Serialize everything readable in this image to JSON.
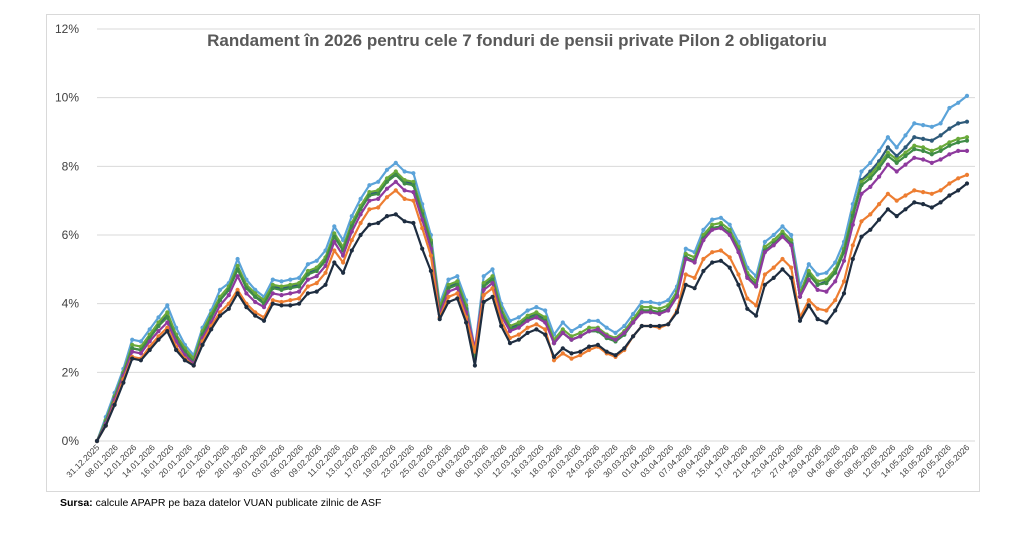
{
  "source": {
    "label": "Sursa:",
    "text": "calcule APAPR pe baza datelor VUAN publicate zilnic de ASF"
  },
  "chart_data": {
    "type": "line",
    "title": "Randament în 2026 pentru cele 7 fonduri de pensii private Pilon 2 obligatoriu",
    "xlabel": "",
    "ylabel": "",
    "ylim": [
      0,
      12
    ],
    "yticks": [
      "0%",
      "2%",
      "4%",
      "6%",
      "8%",
      "10%",
      "12%"
    ],
    "grid": true,
    "legend": "none",
    "x_tick_labels": [
      "31.12.2025",
      "08.01.2026",
      "12.01.2026",
      "14.01.2026",
      "16.01.2026",
      "20.01.2026",
      "22.01.2026",
      "26.01.2026",
      "28.01.2026",
      "30.01.2026",
      "03.02.2026",
      "05.02.2026",
      "09.02.2026",
      "11.02.2026",
      "13.02.2026",
      "17.02.2026",
      "19.02.2026",
      "23.02.2026",
      "25.02.2026",
      "02.03.2026",
      "04.03.2026",
      "06.03.2026",
      "10.03.2026",
      "12.03.2026",
      "16.03.2026",
      "18.03.2026",
      "20.03.2026",
      "24.03.2026",
      "26.03.2026",
      "30.03.2026",
      "01.04.2026",
      "03.04.2026",
      "07.04.2026",
      "09.04.2026",
      "15.04.2026",
      "17.04.2026",
      "21.04.2026",
      "23.04.2026",
      "27.04.2026",
      "29.04.2026",
      "04.05.2026",
      "06.05.2026",
      "08.05.2026",
      "12.05.2026",
      "14.05.2026",
      "18.05.2026",
      "20.05.2026",
      "22.05.2026"
    ],
    "series": [
      {
        "color": "#5ba3d9",
        "values": [
          0.0,
          0.7,
          1.4,
          2.1,
          2.95,
          2.9,
          3.25,
          3.6,
          3.95,
          3.3,
          2.8,
          2.5,
          3.3,
          3.8,
          4.4,
          4.6,
          5.3,
          4.7,
          4.4,
          4.2,
          4.7,
          4.65,
          4.7,
          4.75,
          5.15,
          5.25,
          5.55,
          6.25,
          5.85,
          6.55,
          7.05,
          7.45,
          7.55,
          7.9,
          8.1,
          7.85,
          7.8,
          6.9,
          6.0,
          4.0,
          4.7,
          4.8,
          4.1,
          2.65,
          4.8,
          5.0,
          4.0,
          3.5,
          3.6,
          3.8,
          3.9,
          3.8,
          3.1,
          3.45,
          3.2,
          3.35,
          3.5,
          3.5,
          3.3,
          3.15,
          3.35,
          3.7,
          4.05,
          4.05,
          4.0,
          4.1,
          4.5,
          5.6,
          5.5,
          6.15,
          6.45,
          6.5,
          6.3,
          5.8,
          5.05,
          4.8,
          5.8,
          6.0,
          6.25,
          6.0,
          4.5,
          5.15,
          4.85,
          4.9,
          5.2,
          5.8,
          6.9,
          7.85,
          8.1,
          8.45,
          8.85,
          8.55,
          8.9,
          9.25,
          9.2,
          9.15,
          9.25,
          9.7,
          9.85,
          10.05
        ]
      },
      {
        "color": "#2e5a7a",
        "values": [
          0.0,
          0.6,
          1.3,
          2.0,
          2.7,
          2.65,
          3.0,
          3.35,
          3.7,
          3.0,
          2.6,
          2.3,
          3.1,
          3.6,
          4.1,
          4.4,
          5.0,
          4.5,
          4.2,
          4.05,
          4.5,
          4.45,
          4.5,
          4.55,
          4.9,
          5.0,
          5.3,
          6.0,
          5.6,
          6.3,
          6.8,
          7.2,
          7.25,
          7.6,
          7.8,
          7.55,
          7.5,
          6.65,
          5.8,
          3.8,
          4.5,
          4.6,
          3.85,
          2.4,
          4.55,
          4.75,
          3.75,
          3.3,
          3.4,
          3.6,
          3.7,
          3.55,
          2.85,
          3.15,
          2.95,
          3.05,
          3.2,
          3.2,
          3.0,
          2.9,
          3.1,
          3.45,
          3.8,
          3.8,
          3.75,
          3.85,
          4.25,
          5.35,
          5.25,
          5.9,
          6.2,
          6.25,
          6.05,
          5.55,
          4.8,
          4.55,
          5.55,
          5.75,
          6.0,
          5.75,
          4.2,
          4.9,
          4.55,
          4.65,
          4.95,
          5.55,
          6.6,
          7.6,
          7.85,
          8.15,
          8.55,
          8.3,
          8.55,
          8.85,
          8.8,
          8.75,
          8.9,
          9.1,
          9.25,
          9.3
        ]
      },
      {
        "color": "#6aaa3a",
        "values": [
          0.0,
          0.6,
          1.3,
          2.0,
          2.8,
          2.75,
          3.1,
          3.45,
          3.75,
          3.1,
          2.7,
          2.4,
          3.2,
          3.7,
          4.2,
          4.5,
          5.1,
          4.55,
          4.3,
          4.1,
          4.55,
          4.5,
          4.55,
          4.6,
          4.95,
          5.05,
          5.35,
          6.05,
          5.65,
          6.35,
          6.85,
          7.25,
          7.3,
          7.65,
          7.85,
          7.6,
          7.55,
          6.7,
          5.85,
          3.9,
          4.55,
          4.65,
          3.95,
          2.5,
          4.6,
          4.8,
          3.85,
          3.35,
          3.45,
          3.65,
          3.75,
          3.6,
          2.95,
          3.25,
          3.05,
          3.15,
          3.3,
          3.3,
          3.1,
          3.0,
          3.2,
          3.55,
          3.9,
          3.9,
          3.85,
          3.95,
          4.35,
          5.45,
          5.35,
          6.0,
          6.3,
          6.35,
          6.15,
          5.65,
          4.9,
          4.65,
          5.65,
          5.85,
          6.1,
          5.85,
          4.3,
          4.95,
          4.65,
          4.7,
          5.0,
          5.6,
          6.65,
          7.55,
          7.75,
          8.05,
          8.4,
          8.2,
          8.4,
          8.6,
          8.55,
          8.45,
          8.55,
          8.7,
          8.8,
          8.85
        ]
      },
      {
        "color": "#3f8c47",
        "values": [
          0.0,
          0.55,
          1.25,
          1.95,
          2.7,
          2.65,
          3.0,
          3.35,
          3.6,
          3.0,
          2.6,
          2.3,
          3.1,
          3.6,
          4.1,
          4.4,
          5.0,
          4.45,
          4.2,
          4.0,
          4.45,
          4.4,
          4.45,
          4.5,
          4.85,
          4.95,
          5.25,
          5.95,
          5.55,
          6.25,
          6.75,
          7.15,
          7.2,
          7.55,
          7.75,
          7.5,
          7.45,
          6.6,
          5.75,
          3.8,
          4.45,
          4.55,
          3.85,
          2.45,
          4.5,
          4.7,
          3.75,
          3.25,
          3.35,
          3.55,
          3.65,
          3.5,
          2.85,
          3.15,
          2.95,
          3.05,
          3.2,
          3.2,
          3.0,
          2.9,
          3.1,
          3.45,
          3.8,
          3.8,
          3.75,
          3.85,
          4.25,
          5.35,
          5.25,
          5.9,
          6.2,
          6.25,
          6.05,
          5.55,
          4.8,
          4.55,
          5.55,
          5.75,
          6.0,
          5.75,
          4.2,
          4.85,
          4.55,
          4.6,
          4.9,
          5.5,
          6.55,
          7.45,
          7.65,
          7.95,
          8.3,
          8.1,
          8.3,
          8.5,
          8.45,
          8.35,
          8.45,
          8.6,
          8.7,
          8.75
        ]
      },
      {
        "color": "#8e3a9e",
        "values": [
          0.0,
          0.5,
          1.2,
          1.9,
          2.6,
          2.55,
          2.9,
          3.2,
          3.45,
          2.9,
          2.5,
          2.25,
          3.0,
          3.45,
          3.95,
          4.25,
          4.8,
          4.3,
          4.05,
          3.9,
          4.3,
          4.25,
          4.3,
          4.35,
          4.7,
          4.8,
          5.1,
          5.8,
          5.4,
          6.1,
          6.6,
          7.0,
          7.05,
          7.35,
          7.55,
          7.3,
          7.25,
          6.45,
          5.6,
          3.7,
          4.35,
          4.45,
          3.75,
          2.7,
          4.4,
          4.6,
          3.65,
          3.2,
          3.3,
          3.5,
          3.6,
          3.45,
          2.85,
          3.15,
          2.95,
          3.05,
          3.2,
          3.25,
          3.05,
          2.95,
          3.15,
          3.45,
          3.75,
          3.75,
          3.7,
          3.8,
          4.2,
          5.3,
          5.2,
          5.85,
          6.15,
          6.2,
          6.0,
          5.5,
          4.75,
          4.5,
          5.5,
          5.7,
          5.95,
          5.7,
          4.2,
          4.7,
          4.4,
          4.35,
          4.65,
          5.25,
          6.3,
          7.2,
          7.4,
          7.7,
          8.05,
          7.85,
          8.05,
          8.25,
          8.2,
          8.1,
          8.2,
          8.35,
          8.45,
          8.45
        ]
      },
      {
        "color": "#ed7d31",
        "values": [
          0.0,
          0.45,
          1.1,
          1.8,
          2.45,
          2.4,
          2.75,
          3.05,
          3.3,
          2.75,
          2.4,
          2.2,
          2.9,
          3.35,
          3.75,
          4.0,
          4.4,
          4.0,
          3.75,
          3.6,
          4.1,
          4.05,
          4.1,
          4.15,
          4.5,
          4.6,
          4.9,
          5.55,
          5.2,
          5.85,
          6.35,
          6.75,
          6.8,
          7.1,
          7.3,
          7.05,
          7.0,
          6.2,
          5.4,
          3.6,
          4.2,
          4.3,
          3.6,
          2.6,
          4.25,
          4.45,
          3.5,
          3.0,
          3.1,
          3.3,
          3.4,
          3.25,
          2.35,
          2.55,
          2.4,
          2.5,
          2.65,
          2.75,
          2.55,
          2.45,
          2.65,
          3.05,
          3.35,
          3.35,
          3.3,
          3.4,
          3.8,
          4.85,
          4.75,
          5.3,
          5.5,
          5.55,
          5.35,
          4.85,
          4.15,
          3.95,
          4.85,
          5.05,
          5.3,
          5.05,
          3.6,
          4.1,
          3.85,
          3.8,
          4.1,
          4.65,
          5.7,
          6.4,
          6.6,
          6.9,
          7.2,
          7.0,
          7.15,
          7.3,
          7.25,
          7.2,
          7.3,
          7.5,
          7.65,
          7.75
        ]
      },
      {
        "color": "#1e2d40",
        "values": [
          0.0,
          0.45,
          1.05,
          1.7,
          2.4,
          2.35,
          2.65,
          2.95,
          3.2,
          2.65,
          2.35,
          2.2,
          2.8,
          3.25,
          3.65,
          3.85,
          4.3,
          3.9,
          3.65,
          3.5,
          4.0,
          3.95,
          3.95,
          4.0,
          4.3,
          4.35,
          4.55,
          5.2,
          4.9,
          5.55,
          6.0,
          6.3,
          6.35,
          6.55,
          6.6,
          6.4,
          6.35,
          5.6,
          4.95,
          3.55,
          4.05,
          4.15,
          3.45,
          2.2,
          4.05,
          4.2,
          3.35,
          2.85,
          2.95,
          3.15,
          3.25,
          3.1,
          2.45,
          2.7,
          2.55,
          2.6,
          2.75,
          2.8,
          2.6,
          2.5,
          2.7,
          3.05,
          3.35,
          3.35,
          3.35,
          3.4,
          3.75,
          4.55,
          4.45,
          4.95,
          5.2,
          5.25,
          5.05,
          4.55,
          3.85,
          3.65,
          4.55,
          4.75,
          5.0,
          4.75,
          3.5,
          3.95,
          3.55,
          3.45,
          3.8,
          4.3,
          5.3,
          5.95,
          6.15,
          6.45,
          6.75,
          6.55,
          6.75,
          6.95,
          6.9,
          6.8,
          6.95,
          7.15,
          7.3,
          7.5
        ]
      }
    ]
  }
}
